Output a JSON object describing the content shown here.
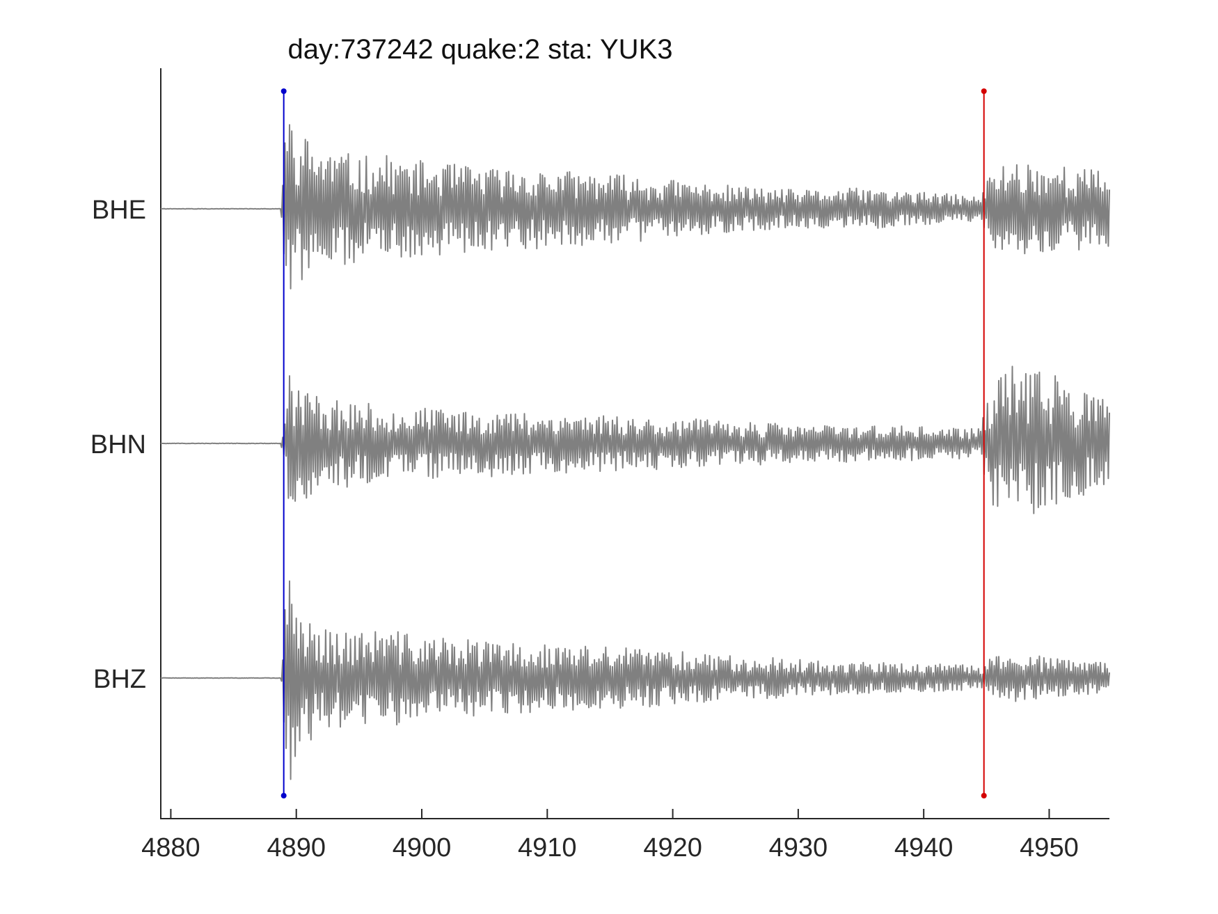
{
  "chart_data": {
    "type": "line",
    "title": "day:737242 quake:2 sta: YUK3",
    "xlabel": "",
    "ylabel": "",
    "xlim": [
      4879.2,
      4954.8
    ],
    "xticks": [
      4880,
      4890,
      4900,
      4910,
      4920,
      4930,
      4940,
      4950
    ],
    "xtick_labels": [
      "4880",
      "4890",
      "4900",
      "4910",
      "4920",
      "4930",
      "4940",
      "4950"
    ],
    "grid": false,
    "legend": "none",
    "trace_color": "#808080",
    "traces": [
      {
        "name": "BHE",
        "onset": 4889.0,
        "seed": 11,
        "x": [
          4879.2,
          4885,
          4888.8,
          4889,
          4889.5,
          4890,
          4892,
          4895,
          4897,
          4900,
          4905,
          4910,
          4915,
          4920,
          4925,
          4930,
          4935,
          4940,
          4944.5,
          4945.5,
          4947,
          4950,
          4954.8
        ],
        "amplitude": [
          0.0,
          0.0,
          0.02,
          0.6,
          1.0,
          0.75,
          0.62,
          0.5,
          0.52,
          0.46,
          0.4,
          0.38,
          0.34,
          0.28,
          0.22,
          0.18,
          0.2,
          0.16,
          0.12,
          0.4,
          0.48,
          0.44,
          0.36
        ]
      },
      {
        "name": "BHN",
        "onset": 4889.0,
        "seed": 23,
        "x": [
          4879.2,
          4885,
          4888.8,
          4889,
          4889.5,
          4890,
          4892,
          4895,
          4897,
          4900,
          4905,
          4910,
          4915,
          4920,
          4925,
          4930,
          4935,
          4940,
          4944.5,
          4945.5,
          4947,
          4950,
          4954.8
        ],
        "amplitude": [
          0.0,
          0.0,
          0.02,
          0.25,
          0.72,
          0.6,
          0.46,
          0.4,
          0.36,
          0.34,
          0.32,
          0.3,
          0.28,
          0.24,
          0.22,
          0.18,
          0.18,
          0.16,
          0.14,
          0.65,
          0.75,
          0.7,
          0.4
        ]
      },
      {
        "name": "BHZ",
        "onset": 4889.0,
        "seed": 37,
        "x": [
          4879.2,
          4885,
          4888.8,
          4889,
          4889.5,
          4890,
          4892,
          4895,
          4897,
          4900,
          4905,
          4910,
          4915,
          4920,
          4925,
          4930,
          4935,
          4940,
          4944.5,
          4945.5,
          4947,
          4950,
          4954.8
        ],
        "amplitude": [
          0.0,
          0.0,
          0.02,
          0.6,
          1.0,
          0.75,
          0.5,
          0.44,
          0.48,
          0.4,
          0.36,
          0.32,
          0.3,
          0.27,
          0.22,
          0.18,
          0.15,
          0.14,
          0.12,
          0.22,
          0.24,
          0.2,
          0.14
        ]
      }
    ],
    "markers": [
      {
        "name": "blue-pick",
        "x": 4889.0,
        "color": "#0000cc"
      },
      {
        "name": "red-pick",
        "x": 4944.8,
        "color": "#d40000"
      }
    ]
  }
}
